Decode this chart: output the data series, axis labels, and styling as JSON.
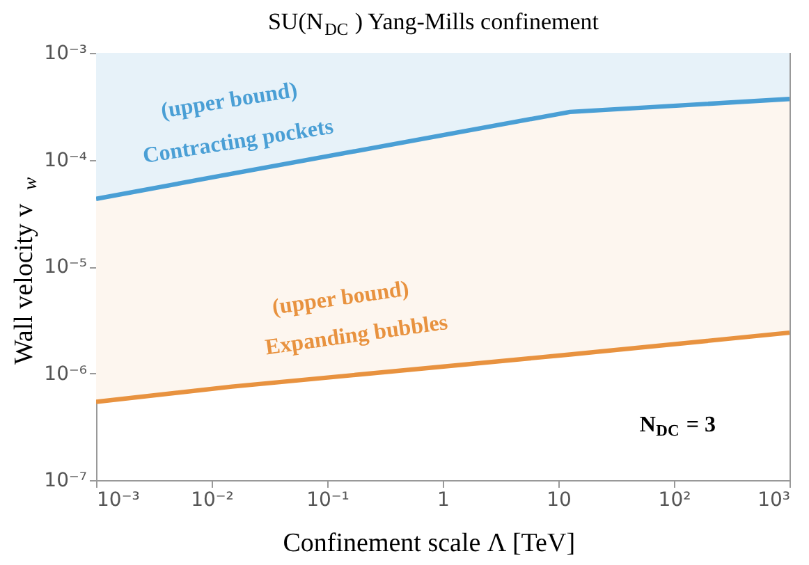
{
  "chart_data": {
    "type": "line",
    "title": "SU(N$_{DC}$) Yang-Mills confinement",
    "xlabel": "Confinement scale Λ [TeV]",
    "ylabel": "Wall velocity v$_{w}$",
    "x": [
      0.001,
      0.015,
      12.6,
      1000
    ],
    "series": [
      {
        "name": "Contracting pockets",
        "color": "#4a9fd5",
        "values": [
          4.3e-05,
          7.4e-05,
          0.00028,
          0.00037
        ],
        "lower": [
          4.3e-05,
          7.4e-05,
          0.00028,
          0.00037
        ],
        "upper": [
          0.001,
          0.001,
          0.001,
          0.001
        ]
      },
      {
        "name": "Expanding bubbles",
        "color": "#e8923f",
        "values": [
          5.4e-07,
          7.5e-07,
          1.5e-06,
          2.4e-06
        ],
        "lower": [
          5.4e-07,
          7.5e-07,
          1.5e-06,
          2.4e-06
        ],
        "upper": [
          4.3e-05,
          7.4e-05,
          0.00028,
          0.00037
        ]
      }
    ],
    "annotations": [
      "(upper bound)",
      "(upper bound)",
      "N$_{DC}$ = 3"
    ],
    "log": "xy",
    "xlim": [
      0.001,
      1000
    ],
    "ylim": [
      1e-07,
      0.001
    ],
    "xticks": [
      {
        "value": 0.001,
        "label": "10⁻³"
      },
      {
        "value": 0.01,
        "label": "10⁻²"
      },
      {
        "value": 0.1,
        "label": "10⁻¹"
      },
      1,
      10,
      {
        "value": 100,
        "label": "10²"
      },
      {
        "value": 1000,
        "label": "10³"
      }
    ],
    "yticks": [
      {
        "value": 1e-07,
        "label": "10⁻⁷"
      },
      {
        "value": 1e-06,
        "label": "10⁻⁶"
      },
      {
        "value": 1e-05,
        "label": "10⁻⁵"
      },
      {
        "value": 0.0001,
        "label": "10⁻⁴"
      },
      {
        "value": 0.001,
        "label": "10⁻³"
      }
    ],
    "grid": false
  }
}
